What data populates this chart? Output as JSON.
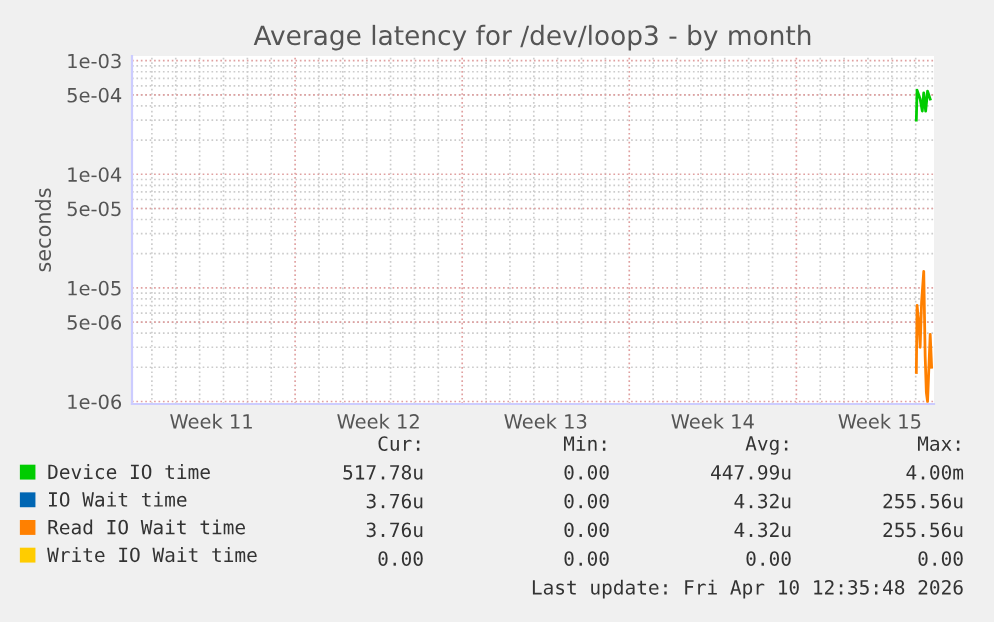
{
  "chart_data": {
    "type": "line",
    "title": "Average latency for /dev/loop3 - by month",
    "ylabel": "seconds",
    "log": "y",
    "grid": true,
    "legend": "bottom",
    "line_style": "solid",
    "marker": "none",
    "xlim": [
      "2026-03-09T04:00",
      "2026-04-11T18:24"
    ],
    "xticks": [
      {
        "value": "2026-03-12T12:00",
        "label": "Week 11"
      },
      {
        "value": "2026-03-19T12:00",
        "label": "Week 12"
      },
      {
        "value": "2026-03-26T12:00",
        "label": "Week 13"
      },
      {
        "value": "2026-04-02T12:00",
        "label": "Week 14"
      },
      {
        "value": "2026-04-09T12:00",
        "label": "Week 15"
      }
    ],
    "ylim": [
      9.5e-07,
      0.0011
    ],
    "yticks": [
      {
        "value": 0.001,
        "label": "1e-03"
      },
      {
        "value": 0.0005,
        "label": "5e-04"
      },
      {
        "value": 0.0001,
        "label": "1e-04"
      },
      {
        "value": 5e-05,
        "label": "5e-05"
      },
      {
        "value": 1e-05,
        "label": "1e-05"
      },
      {
        "value": 5e-06,
        "label": "5e-06"
      },
      {
        "value": 1e-06,
        "label": "1e-06"
      }
    ],
    "series": [
      {
        "name": "Device IO time",
        "color": "#00cc00",
        "x": [
          "2026-04-11T00:38",
          "2026-04-11T01:22",
          "2026-04-11T04:29",
          "2026-04-11T06:38",
          "2026-04-11T08:05",
          "2026-04-11T10:00",
          "2026-04-11T11:55",
          "2026-04-11T14:34"
        ],
        "values": [
          0.0003,
          0.00055,
          0.00046,
          0.00036,
          0.00052,
          0.00036,
          0.00054,
          0.00046
        ]
      },
      {
        "name": "IO Wait time",
        "color": "#0066b3"
      },
      {
        "name": "Read IO Wait time",
        "color": "#ff8000",
        "x": [
          "2026-04-11T00:38",
          "2026-04-11T01:22",
          "2026-04-11T03:31",
          "2026-04-11T04:29",
          "2026-04-11T05:55",
          "2026-04-11T08:05",
          "2026-04-11T09:31",
          "2026-04-11T10:43",
          "2026-04-11T11:55",
          "2026-04-11T14:34",
          "2026-04-11T16:00"
        ],
        "values": [
          1.8e-06,
          7e-06,
          4.5e-06,
          3e-06,
          7.5e-06,
          1.4e-05,
          2.5e-06,
          1.2e-06,
          1e-06,
          3.9e-06,
          2e-06
        ]
      },
      {
        "name": "Write IO Wait time",
        "color": "#ffcc00"
      }
    ],
    "annotations": [
      "Cur:",
      "Min:",
      "Avg:",
      "Max:",
      "517.78u",
      "0.00",
      "447.99u",
      "4.00m",
      "3.76u",
      "0.00",
      "4.32u",
      "255.56u",
      "3.76u",
      "0.00",
      "4.32u",
      "255.56u",
      "0.00",
      "0.00",
      "0.00",
      "0.00",
      "Last update: Fri Apr 10 12:35:48 2026"
    ]
  }
}
